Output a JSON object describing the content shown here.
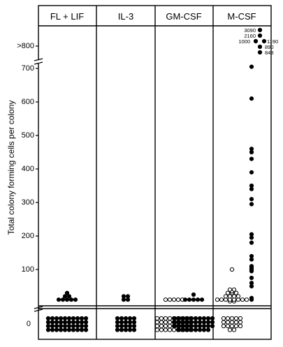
{
  "chart_data": {
    "type": "scatter",
    "title": "",
    "ylabel": "Total colony forming cells per colony",
    "xlabel": "",
    "panels": [
      "FL + LIF",
      "IL-3",
      "GM-CSF",
      "M-CSF"
    ],
    "ytick_labels": [
      "0",
      "100",
      "200",
      "300",
      "400",
      "500",
      "600",
      "700",
      ">800"
    ],
    "ylim": [
      0,
      800
    ],
    "axis_break": "between 0 and 100; above 700",
    "legend": "none (open circles and filled circles)",
    "outlier_labels": [
      "3090",
      "2160",
      "1000",
      "1190",
      "890",
      "848"
    ],
    "series": [
      {
        "panel": "FL + LIF",
        "marker": "filled",
        "values": [
          30,
          20,
          20,
          10,
          10,
          10,
          10,
          10
        ]
      },
      {
        "panel": "FL + LIF",
        "marker": "filled",
        "zero_count": 40
      },
      {
        "panel": "IL-3",
        "marker": "filled",
        "values": [
          20,
          20,
          10,
          10
        ]
      },
      {
        "panel": "IL-3",
        "marker": "filled",
        "zero_count": 20
      },
      {
        "panel": "GM-CSF",
        "marker": "open",
        "values": [
          10,
          10,
          10,
          10,
          10
        ]
      },
      {
        "panel": "GM-CSF",
        "marker": "open",
        "zero_count": 36
      },
      {
        "panel": "GM-CSF",
        "marker": "filled",
        "values": [
          25,
          10,
          10,
          10,
          10,
          10
        ]
      },
      {
        "panel": "GM-CSF",
        "marker": "filled",
        "zero_count": 38
      },
      {
        "panel": "M-CSF",
        "marker": "open",
        "values": [
          100,
          40,
          40,
          35,
          30,
          30,
          30,
          20,
          20,
          20,
          20,
          10,
          10,
          10,
          10,
          10,
          10,
          10,
          10,
          5,
          5
        ]
      },
      {
        "panel": "M-CSF",
        "marker": "open",
        "zero_count": 17
      },
      {
        "panel": "M-CSF",
        "marker": "filled",
        "values": [
          3090,
          2160,
          1190,
          1000,
          890,
          848,
          720,
          610,
          460,
          450,
          430,
          390,
          350,
          340,
          310,
          295,
          205,
          195,
          180,
          140,
          130,
          110,
          105,
          100,
          95,
          75,
          60,
          50,
          15,
          10
        ]
      }
    ]
  }
}
